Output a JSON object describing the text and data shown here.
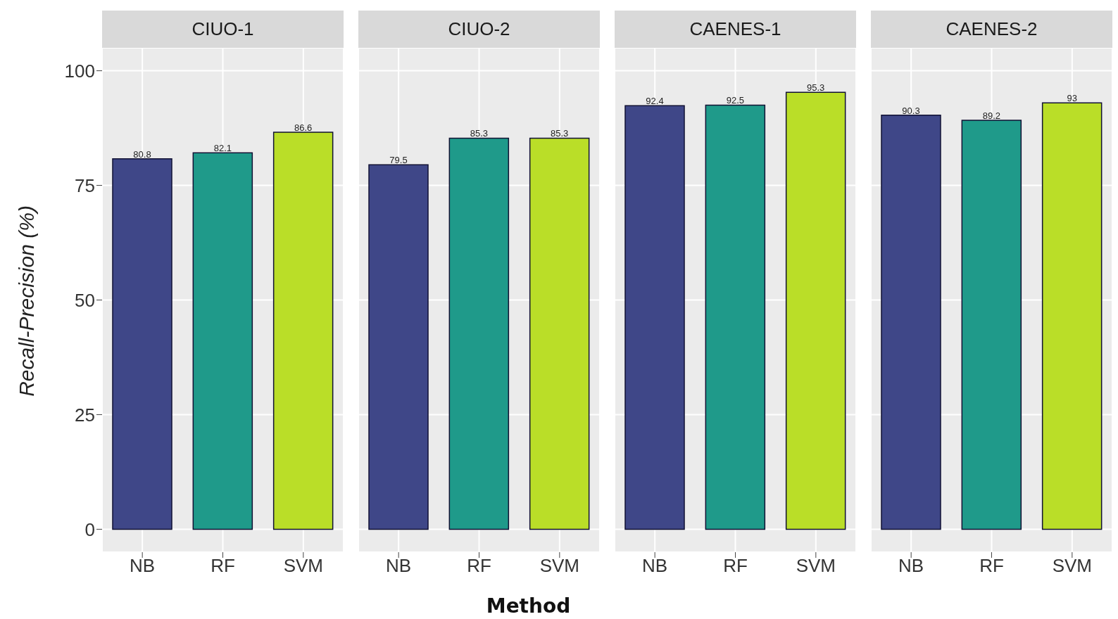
{
  "chart_data": [
    {
      "type": "bar",
      "title": "CIUO-1",
      "categories": [
        "NB",
        "RF",
        "SVM"
      ],
      "values": [
        80.8,
        82.1,
        86.6
      ],
      "colors": [
        "#3f4788",
        "#1f9a8a",
        "#bade28"
      ],
      "ylim": [
        -5,
        105
      ],
      "yticks": [
        0,
        25,
        50,
        75,
        100
      ],
      "grid": true,
      "data_labels": true,
      "ylabel": "Recall-Precision (%)"
    },
    {
      "type": "bar",
      "title": "CIUO-2",
      "categories": [
        "NB",
        "RF",
        "SVM"
      ],
      "values": [
        79.5,
        85.3,
        85.3
      ],
      "colors": [
        "#3f4788",
        "#1f9a8a",
        "#bade28"
      ],
      "ylim": [
        -5,
        105
      ],
      "grid": true,
      "data_labels": true,
      "tick_labels": "x",
      "xlabel": "Method"
    },
    {
      "type": "bar",
      "title": "CAENES-1",
      "categories": [
        "NB",
        "RF",
        "SVM"
      ],
      "values": [
        92.4,
        92.5,
        95.3
      ],
      "colors": [
        "#3f4788",
        "#1f9a8a",
        "#bade28"
      ],
      "ylim": [
        -5,
        105
      ],
      "grid": true,
      "data_labels": true,
      "tick_labels": "x"
    },
    {
      "type": "bar",
      "title": "CAENES-2",
      "categories": [
        "NB",
        "RF",
        "SVM"
      ],
      "values": [
        90.3,
        89.2,
        93
      ],
      "colors": [
        "#3f4788",
        "#1f9a8a",
        "#bade28"
      ],
      "ylim": [
        -5,
        105
      ],
      "grid": true,
      "data_labels": true,
      "tick_labels": "x"
    }
  ]
}
